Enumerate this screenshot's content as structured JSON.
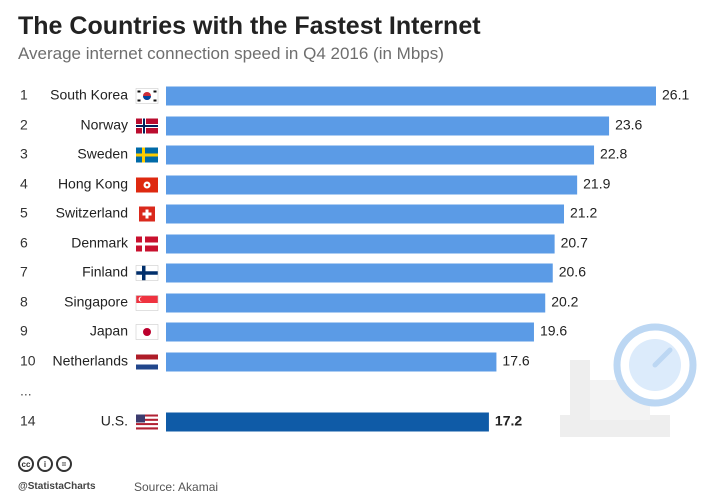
{
  "title": "The Countries with the Fastest Internet",
  "subtitle": "Average internet connection speed in Q4 2016 (in Mbps)",
  "footer": {
    "handle": "@StatistaCharts",
    "source": "Source: Akamai"
  },
  "colors": {
    "bar": "#5b9be6",
    "highlight_bar": "#0f5ba7",
    "text": "#222222"
  },
  "chart_data": {
    "type": "bar",
    "orientation": "horizontal",
    "unit": "Mbps",
    "xlim": [
      0,
      26.1
    ],
    "grid": false,
    "rows": [
      {
        "rank": "1",
        "country": "South Korea",
        "flag": "south-korea-flag",
        "value": 26.1
      },
      {
        "rank": "2",
        "country": "Norway",
        "flag": "norway-flag",
        "value": 23.6
      },
      {
        "rank": "3",
        "country": "Sweden",
        "flag": "sweden-flag",
        "value": 22.8
      },
      {
        "rank": "4",
        "country": "Hong Kong",
        "flag": "hong-kong-flag",
        "value": 21.9
      },
      {
        "rank": "5",
        "country": "Switzerland",
        "flag": "switzerland-flag",
        "value": 21.2
      },
      {
        "rank": "6",
        "country": "Denmark",
        "flag": "denmark-flag",
        "value": 20.7
      },
      {
        "rank": "7",
        "country": "Finland",
        "flag": "finland-flag",
        "value": 20.6
      },
      {
        "rank": "8",
        "country": "Singapore",
        "flag": "singapore-flag",
        "value": 20.2
      },
      {
        "rank": "9",
        "country": "Japan",
        "flag": "japan-flag",
        "value": 19.6
      },
      {
        "rank": "10",
        "country": "Netherlands",
        "flag": "netherlands-flag",
        "value": 17.6
      },
      {
        "rank": "14",
        "country": "U.S.",
        "flag": "us-flag",
        "value": 17.2,
        "highlight": true
      }
    ],
    "gap_marker": "..."
  }
}
